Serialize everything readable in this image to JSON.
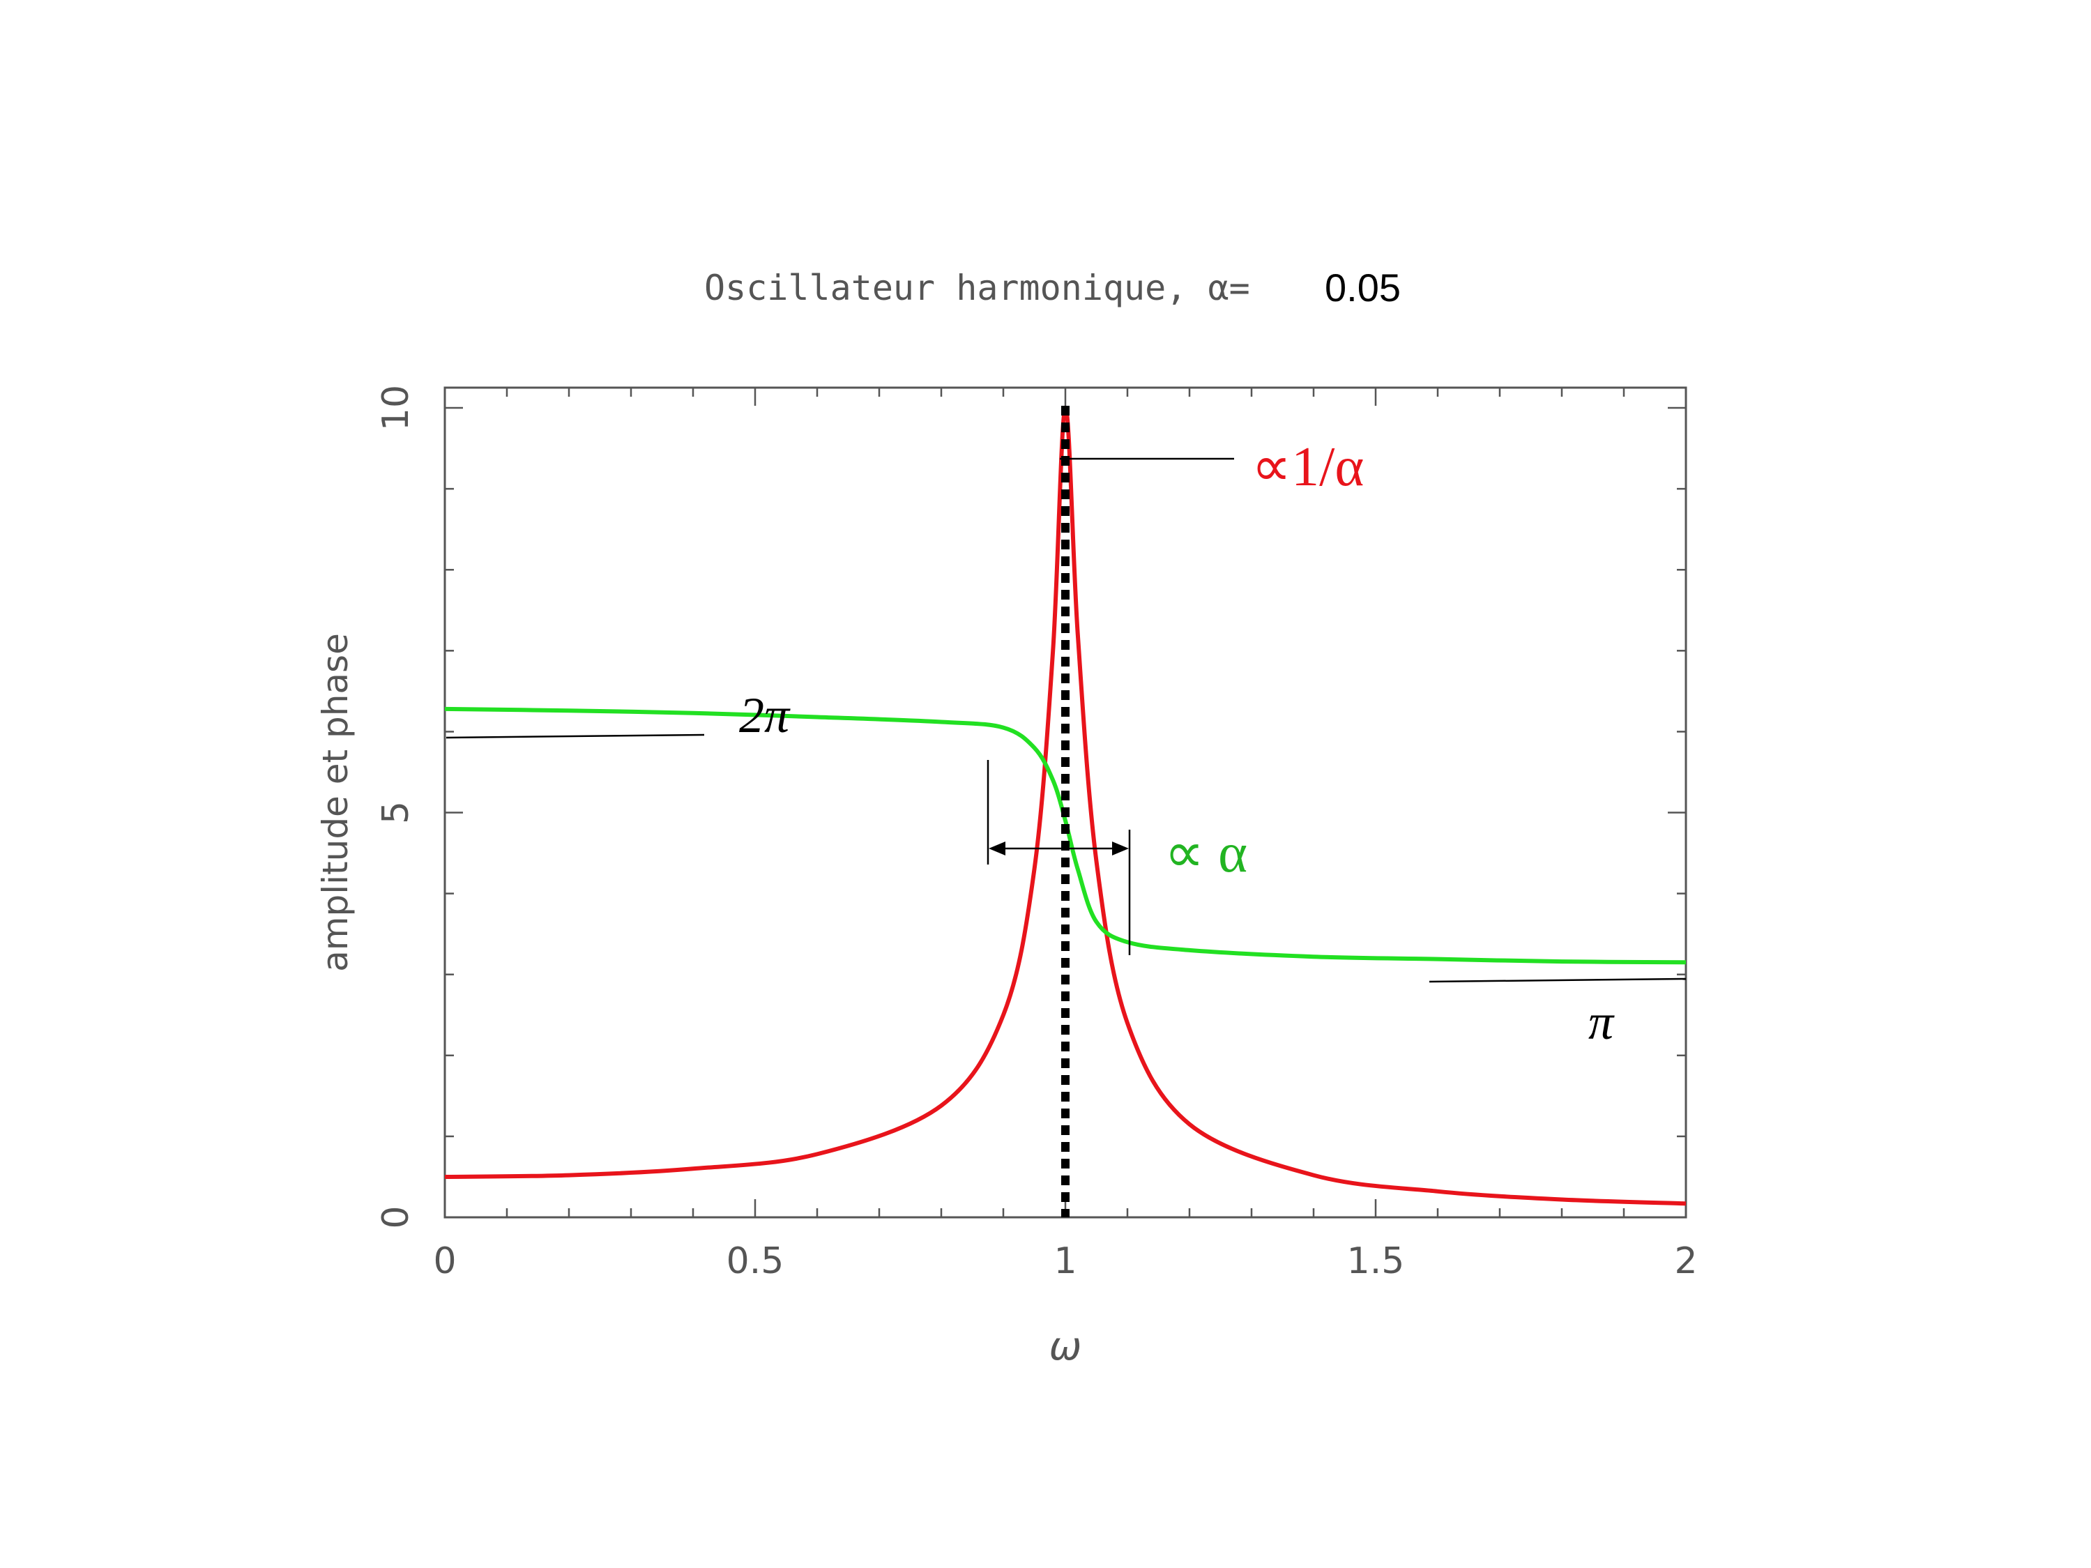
{
  "chart_data": {
    "type": "line",
    "title": "Oscillateur harmonique, α=",
    "title_value": "0.05",
    "xlabel": "ω",
    "ylabel": "amplitude et phase",
    "xlim": [
      0,
      2
    ],
    "ylim": [
      0,
      10.25
    ],
    "x_ticks": [
      "0",
      "0.5",
      "1",
      "1.5",
      "2"
    ],
    "y_ticks": [
      "0",
      "5",
      "10"
    ],
    "grid": false,
    "alpha": 0.05,
    "resonance_x": 1,
    "series": [
      {
        "color": "#e8141b",
        "x": [
          0,
          0.2,
          0.4,
          0.6,
          0.8,
          0.9,
          0.95,
          0.98,
          1.0,
          1.02,
          1.05,
          1.1,
          1.2,
          1.4,
          1.6,
          1.8,
          2.0
        ],
        "values": [
          0.5,
          0.52,
          0.6,
          0.78,
          1.38,
          2.5,
          4.3,
          7.0,
          10.0,
          7.2,
          4.4,
          2.4,
          1.15,
          0.52,
          0.32,
          0.22,
          0.17
        ]
      },
      {
        "color": "#22e022",
        "x": [
          0,
          0.2,
          0.4,
          0.6,
          0.8,
          0.9,
          0.95,
          0.98,
          1.0,
          1.02,
          1.05,
          1.1,
          1.2,
          1.4,
          1.6,
          1.8,
          2.0
        ],
        "values": [
          6.28,
          6.26,
          6.23,
          6.18,
          6.12,
          6.05,
          5.8,
          5.4,
          4.9,
          4.3,
          3.65,
          3.4,
          3.3,
          3.22,
          3.19,
          3.16,
          3.15
        ]
      }
    ],
    "annotations": {
      "peak": "∝1/α",
      "width": "∝ α",
      "phase_low": "2π",
      "phase_high": "π"
    },
    "colors": {
      "amplitude": "#e8141b",
      "phase": "#22e022",
      "frame": "#555555",
      "marker": "#000000"
    }
  }
}
